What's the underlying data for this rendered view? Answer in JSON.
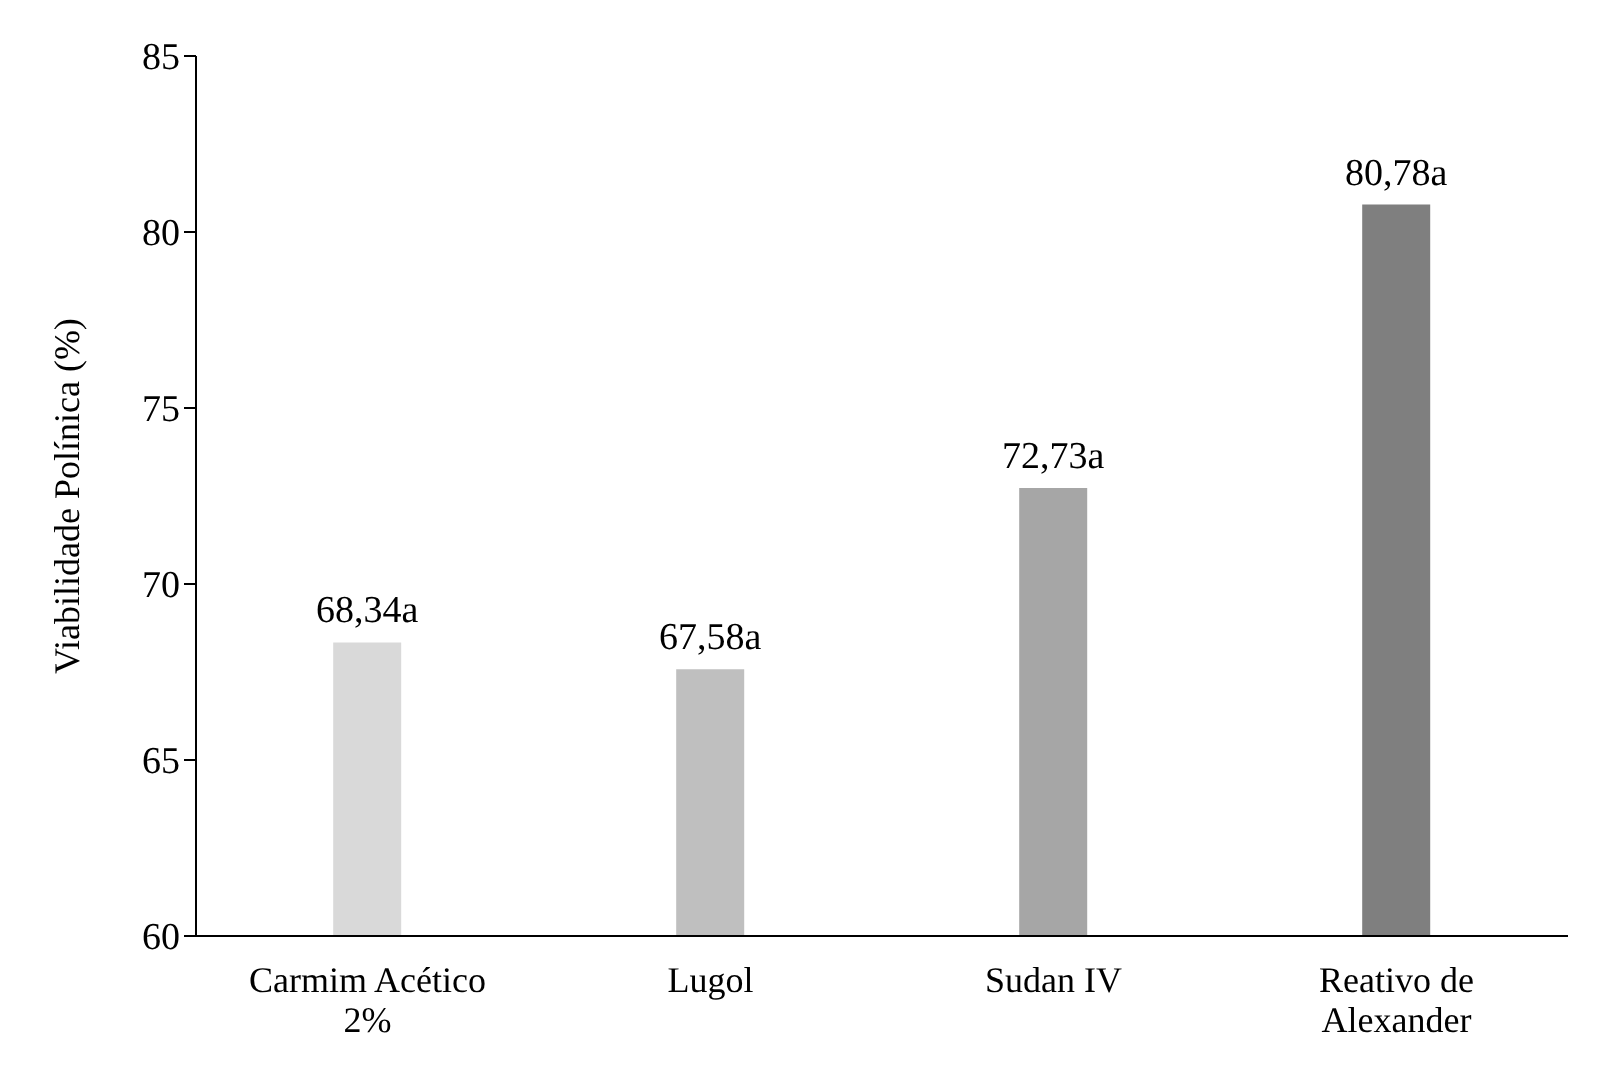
{
  "chart_data": {
    "type": "bar",
    "ylabel": "Viabilidade Polínica (%)",
    "categories": [
      "Carmim Acético 2%",
      "Lugol",
      "Sudan IV",
      "Reativo de Alexander"
    ],
    "values": [
      68.34,
      67.58,
      72.73,
      80.78
    ],
    "value_labels": [
      "68,34a",
      "67,58a",
      "72,73a",
      "80,78a"
    ],
    "colors": [
      "#d9d9d9",
      "#bfbfbf",
      "#a6a6a6",
      "#7f7f7f"
    ],
    "ylim": [
      60,
      85
    ],
    "yticks": [
      60,
      65,
      70,
      75,
      80,
      85
    ],
    "grid": false,
    "legend": false
  }
}
